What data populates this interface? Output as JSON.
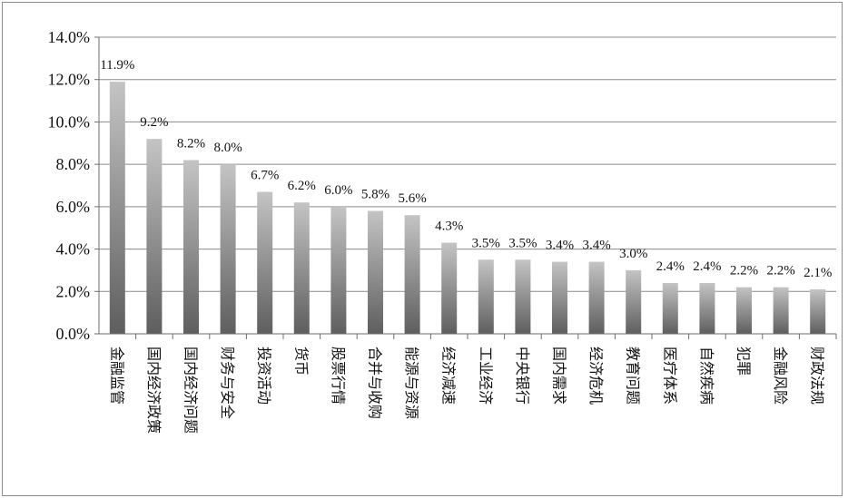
{
  "chart_data": {
    "type": "bar",
    "categories": [
      "金融监管",
      "国内经济政策",
      "国内经济问题",
      "财务与安全",
      "投资活动",
      "货币",
      "股票行情",
      "合并与收购",
      "能源与资源",
      "经济减速",
      "工业经济",
      "中央银行",
      "国内需求",
      "经济危机",
      "教育问题",
      "医疗体系",
      "自然疾病",
      "犯罪",
      "金融风险",
      "财政法规"
    ],
    "values": [
      11.9,
      9.2,
      8.2,
      8.0,
      6.7,
      6.2,
      6.0,
      5.8,
      5.6,
      4.3,
      3.5,
      3.5,
      3.4,
      3.4,
      3.0,
      2.4,
      2.4,
      2.2,
      2.2,
      2.1
    ],
    "value_labels": [
      "11.9%",
      "9.2%",
      "8.2%",
      "8.0%",
      "6.7%",
      "6.2%",
      "6.0%",
      "5.8%",
      "5.6%",
      "4.3%",
      "3.5%",
      "3.5%",
      "3.4%",
      "3.4%",
      "3.0%",
      "2.4%",
      "2.4%",
      "2.2%",
      "2.2%",
      "2.1%"
    ],
    "yticks": [
      0,
      2,
      4,
      6,
      8,
      10,
      12,
      14
    ],
    "ytick_labels": [
      "0.0%",
      "2.0%",
      "4.0%",
      "6.0%",
      "8.0%",
      "10.0%",
      "12.0%",
      "14.0%"
    ],
    "ylim": [
      0,
      14
    ],
    "grid": true,
    "legend": "none",
    "colors": {
      "bar_top": "#c4c4c4",
      "bar_bottom": "#5e5e5e",
      "grid": "#8a8a8a",
      "axis": "#6e6e6e"
    }
  }
}
